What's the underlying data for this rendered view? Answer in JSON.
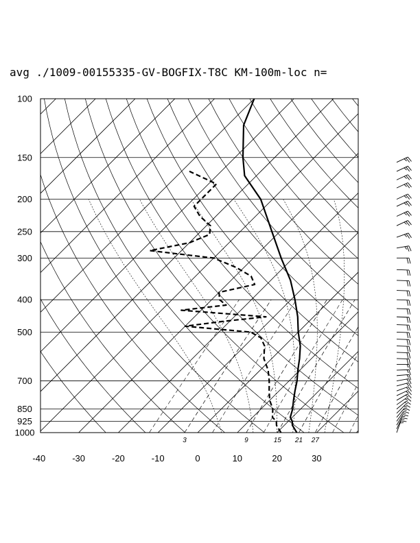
{
  "chart_data": {
    "type": "line",
    "title": "avg ./1009-00155335-GV-BOGFIX-T8C KM-100m-loc n=",
    "y_axis": {
      "scale": "log-pressure",
      "ticks": [
        "100",
        "150",
        "200",
        "250",
        "300",
        "400",
        "500",
        "700",
        "850",
        "925",
        "1000"
      ],
      "ylim": [
        1000,
        100
      ]
    },
    "x_axis": {
      "ticks": [
        "-40",
        "-30",
        "-20",
        "-10",
        "0",
        "10",
        "20",
        "30"
      ],
      "xlim": [
        -40,
        40
      ]
    },
    "mixing_ratio_labels": [
      "3",
      "9",
      "15",
      "21",
      "27"
    ],
    "series": [
      {
        "values": [
          {
            "p": 1000,
            "t": 25
          },
          {
            "p": 975,
            "t": 23.5
          },
          {
            "p": 950,
            "t": 22
          },
          {
            "p": 925,
            "t": 21
          },
          {
            "p": 900,
            "t": 19.5
          },
          {
            "p": 850,
            "t": 18
          },
          {
            "p": 800,
            "t": 16
          },
          {
            "p": 750,
            "t": 14
          },
          {
            "p": 700,
            "t": 12
          },
          {
            "p": 650,
            "t": 9.5
          },
          {
            "p": 600,
            "t": 7
          },
          {
            "p": 550,
            "t": 4
          },
          {
            "p": 500,
            "t": 0
          },
          {
            "p": 450,
            "t": -4
          },
          {
            "p": 400,
            "t": -9
          },
          {
            "p": 350,
            "t": -15
          },
          {
            "p": 300,
            "t": -23
          },
          {
            "p": 250,
            "t": -32
          },
          {
            "p": 200,
            "t": -43
          },
          {
            "p": 170,
            "t": -53
          },
          {
            "p": 150,
            "t": -58
          },
          {
            "p": 120,
            "t": -66
          },
          {
            "p": 100,
            "t": -70
          }
        ]
      },
      {
        "dashed": true,
        "values": [
          {
            "p": 1000,
            "t": 21
          },
          {
            "p": 950,
            "t": 18
          },
          {
            "p": 925,
            "t": 17
          },
          {
            "p": 900,
            "t": 15
          },
          {
            "p": 850,
            "t": 13
          },
          {
            "p": 800,
            "t": 10
          },
          {
            "p": 750,
            "t": 7.5
          },
          {
            "p": 700,
            "t": 5
          },
          {
            "p": 650,
            "t": 2
          },
          {
            "p": 600,
            "t": -2
          },
          {
            "p": 550,
            "t": -5
          },
          {
            "p": 520,
            "t": -8
          },
          {
            "p": 500,
            "t": -12
          },
          {
            "p": 480,
            "t": -30
          },
          {
            "p": 465,
            "t": -22
          },
          {
            "p": 450,
            "t": -12
          },
          {
            "p": 430,
            "t": -35
          },
          {
            "p": 415,
            "t": -25
          },
          {
            "p": 400,
            "t": -28
          },
          {
            "p": 380,
            "t": -30
          },
          {
            "p": 360,
            "t": -23
          },
          {
            "p": 340,
            "t": -26
          },
          {
            "p": 320,
            "t": -32
          },
          {
            "p": 300,
            "t": -40
          },
          {
            "p": 285,
            "t": -58
          },
          {
            "p": 270,
            "t": -50
          },
          {
            "p": 255,
            "t": -47
          },
          {
            "p": 240,
            "t": -49
          },
          {
            "p": 225,
            "t": -54
          },
          {
            "p": 210,
            "t": -58
          },
          {
            "p": 195,
            "t": -58
          },
          {
            "p": 180,
            "t": -58
          },
          {
            "p": 165,
            "t": -68
          }
        ]
      }
    ],
    "wind_barbs": {
      "type": "barbs",
      "levels": [
        {
          "p": 1000,
          "speed": 15,
          "dir": 200
        },
        {
          "p": 975,
          "speed": 15,
          "dir": 205
        },
        {
          "p": 950,
          "speed": 15,
          "dir": 210
        },
        {
          "p": 925,
          "speed": 15,
          "dir": 215
        },
        {
          "p": 900,
          "speed": 15,
          "dir": 220
        },
        {
          "p": 875,
          "speed": 15,
          "dir": 225
        },
        {
          "p": 850,
          "speed": 15,
          "dir": 230
        },
        {
          "p": 825,
          "speed": 15,
          "dir": 235
        },
        {
          "p": 800,
          "speed": 15,
          "dir": 240
        },
        {
          "p": 775,
          "speed": 15,
          "dir": 245
        },
        {
          "p": 750,
          "speed": 15,
          "dir": 250
        },
        {
          "p": 725,
          "speed": 15,
          "dir": 255
        },
        {
          "p": 700,
          "speed": 15,
          "dir": 260
        },
        {
          "p": 675,
          "speed": 15,
          "dir": 265
        },
        {
          "p": 650,
          "speed": 15,
          "dir": 268
        },
        {
          "p": 625,
          "speed": 15,
          "dir": 270
        },
        {
          "p": 600,
          "speed": 20,
          "dir": 272
        },
        {
          "p": 575,
          "speed": 20,
          "dir": 272
        },
        {
          "p": 550,
          "speed": 20,
          "dir": 272
        },
        {
          "p": 525,
          "speed": 20,
          "dir": 272
        },
        {
          "p": 500,
          "speed": 20,
          "dir": 272
        },
        {
          "p": 475,
          "speed": 20,
          "dir": 272
        },
        {
          "p": 450,
          "speed": 20,
          "dir": 272
        },
        {
          "p": 425,
          "speed": 20,
          "dir": 272
        },
        {
          "p": 400,
          "speed": 20,
          "dir": 272
        },
        {
          "p": 375,
          "speed": 20,
          "dir": 272
        },
        {
          "p": 350,
          "speed": 20,
          "dir": 272
        },
        {
          "p": 325,
          "speed": 20,
          "dir": 272
        },
        {
          "p": 300,
          "speed": 20,
          "dir": 270
        },
        {
          "p": 280,
          "speed": 25,
          "dir": 260
        },
        {
          "p": 260,
          "speed": 25,
          "dir": 250
        },
        {
          "p": 240,
          "speed": 25,
          "dir": 245
        },
        {
          "p": 225,
          "speed": 25,
          "dir": 245
        },
        {
          "p": 210,
          "speed": 25,
          "dir": 245
        },
        {
          "p": 200,
          "speed": 25,
          "dir": 245
        },
        {
          "p": 185,
          "speed": 25,
          "dir": 245
        },
        {
          "p": 175,
          "speed": 25,
          "dir": 245
        },
        {
          "p": 165,
          "speed": 25,
          "dir": 245
        },
        {
          "p": 155,
          "speed": 25,
          "dir": 245
        }
      ]
    },
    "grid": true
  }
}
